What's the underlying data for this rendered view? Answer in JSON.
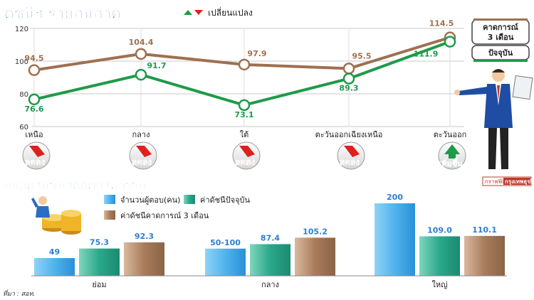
{
  "title": "ดัชนีฯ รายภูมิภาค",
  "change_legend": "เปลี่ยนแปลง",
  "colors": {
    "forecast": "#9e7050",
    "current": "#1f9a4a",
    "blue": "#2a7fd4",
    "up": "#1f9a4a",
    "down": "#e0201c"
  },
  "legend_top": {
    "forecast_label": "คาดการณ์ 3 เดือน",
    "current_label": "ปัจจุบัน"
  },
  "chart_data": [
    {
      "type": "line",
      "ylim": [
        60,
        120
      ],
      "yticks": [
        60,
        80,
        100,
        120
      ],
      "categories": [
        "เหนือ",
        "กลาง",
        "ใต้",
        "ตะวันออกเฉียงเหนือ",
        "ตะวันออก"
      ],
      "series": [
        {
          "name": "คาดการณ์ 3 เดือน",
          "values": [
            94.5,
            104.4,
            97.9,
            95.5,
            114.5
          ],
          "color": "#9e7050"
        },
        {
          "name": "ปัจจุบัน",
          "values": [
            76.6,
            91.7,
            73.1,
            89.3,
            111.9
          ],
          "color": "#1f9a4a"
        }
      ],
      "changes": [
        {
          "label": "ลดลง",
          "direction": "down"
        },
        {
          "label": "ลดลง",
          "direction": "down"
        },
        {
          "label": "ลดลง",
          "direction": "down"
        },
        {
          "label": "ลดลง",
          "direction": "down"
        },
        {
          "label": "เพิ่มขึ้น",
          "direction": "up"
        }
      ]
    },
    {
      "type": "bar",
      "title": "แยกตามขนาดอุตสาหกรรม",
      "categories": [
        "ย่อม",
        "กลาง",
        "ใหญ่"
      ],
      "series": [
        {
          "name": "จำนวนผู้ตอบ(คน)",
          "labels": [
            "49",
            "50-100",
            "200"
          ],
          "color": "#4fb3ec"
        },
        {
          "name": "ค่าดัชนีปัจจุบัน",
          "values": [
            75.3,
            87.4,
            109.0
          ],
          "labels": [
            "75.3",
            "87.4",
            "109.0"
          ],
          "color": "#2aa88a"
        },
        {
          "name": "ค่าดัชนีคาดการณ์ 3 เดือน",
          "values": [
            92.3,
            105.2,
            110.1
          ],
          "labels": [
            "92.3",
            "105.2",
            "110.1"
          ],
          "color": "#a87c5c"
        }
      ]
    }
  ],
  "source": "ที่มา : สอท.",
  "credit_left": "กราฟฟิก",
  "credit_right": "กรุงเทพธุรกิจ"
}
